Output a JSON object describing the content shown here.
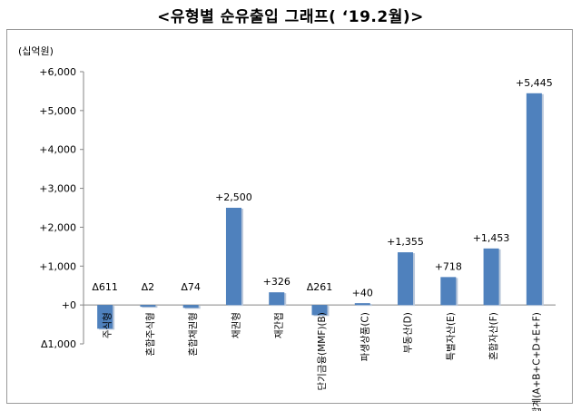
{
  "title": "<유형별 순유출입 그래프( ‘19.2월)>",
  "chart_data": {
    "type": "bar",
    "unit_label": "(십억원)",
    "categories": [
      "주식형",
      "혼합주식형",
      "혼합채권형",
      "채권형",
      "재간접",
      "단기금융(MMF)(B)",
      "파생상품(C)",
      "부동산(D)",
      "특별자산(E)",
      "혼합자산(F)",
      "합계(A+B+C+D+E+F)"
    ],
    "values": [
      -611,
      -2,
      -74,
      2500,
      326,
      -261,
      40,
      1355,
      718,
      1453,
      5445
    ],
    "data_labels": [
      "Δ611",
      "Δ2",
      "Δ74",
      "+2,500",
      "+326",
      "Δ261",
      "+40",
      "+1,355",
      "+718",
      "+1,453",
      "+5,445"
    ],
    "y_ticks": [
      -1000,
      0,
      1000,
      2000,
      3000,
      4000,
      5000,
      6000
    ],
    "y_tick_labels": [
      "Δ1,000",
      "+0",
      "+1,000",
      "+2,000",
      "+3,000",
      "+4,000",
      "+5,000",
      "+6,000"
    ],
    "ylim": [
      -1000,
      6000
    ],
    "bar_color": "#4f81bd",
    "grid": false,
    "legend": "none"
  }
}
